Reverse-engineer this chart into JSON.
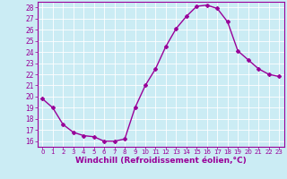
{
  "x": [
    0,
    1,
    2,
    3,
    4,
    5,
    6,
    7,
    8,
    9,
    10,
    11,
    12,
    13,
    14,
    15,
    16,
    17,
    18,
    19,
    20,
    21,
    22,
    23
  ],
  "y": [
    19.8,
    19.0,
    17.5,
    16.8,
    16.5,
    16.4,
    16.0,
    16.0,
    16.2,
    19.0,
    21.0,
    22.5,
    24.5,
    26.1,
    27.2,
    28.1,
    28.2,
    27.9,
    26.7,
    24.1,
    23.3,
    22.5,
    22.0,
    21.8
  ],
  "line_color": "#990099",
  "marker": "D",
  "marker_size": 2.0,
  "xlabel": "Windchill (Refroidissement éolien,°C)",
  "xlabel_fontsize": 6.5,
  "bg_color": "#cbecf4",
  "grid_color": "#ffffff",
  "ylim_min": 15.5,
  "ylim_max": 28.5,
  "yticks": [
    16,
    17,
    18,
    19,
    20,
    21,
    22,
    23,
    24,
    25,
    26,
    27,
    28
  ],
  "xticks": [
    0,
    1,
    2,
    3,
    4,
    5,
    6,
    7,
    8,
    9,
    10,
    11,
    12,
    13,
    14,
    15,
    16,
    17,
    18,
    19,
    20,
    21,
    22,
    23
  ],
  "tick_color": "#990099",
  "ytick_fontsize": 5.5,
  "xtick_fontsize": 5.0,
  "line_width": 1.0,
  "spine_color": "#990099"
}
